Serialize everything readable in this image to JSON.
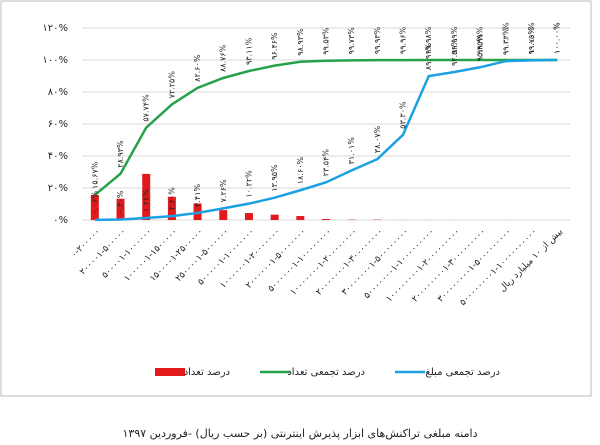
{
  "chart_data": {
    "type": "combo",
    "caption": "دامنه مبلغی تراکنش‌های ابزار پذیرش اینترنتی (بر حسب ریال) -فروردین ۱۳۹۷",
    "categories": [
      "۰-۲۰۰۰۰۰",
      "۲۰۰۰۰۱-۵۰۰۰۰۰",
      "۵۰۰۰۰۱-۱۰۰۰۰۰۰",
      "۱۰۰۰۰۰۱-۱۵۰۰۰۰۰",
      "۱۵۰۰۰۰۱-۲۵۰۰۰۰۰",
      "۲۵۰۰۰۰۱-۵۰۰۰۰۰۰",
      "۵۰۰۰۰۰۱-۱۰۰۰۰۰۰۰",
      "۱۰۰۰۰۰۰۱-۲۰۰۰۰۰۰۰",
      "۲۰۰۰۰۰۰۱-۵۰۰۰۰۰۰۰",
      "۵۰۰۰۰۰۰۱-۱۰۰۰۰۰۰۰۰",
      "۱۰۰۰۰۰۰۰۱-۲۰۰۰۰۰۰۰۰",
      "۲۰۰۰۰۰۰۰۱-۳۰۰۰۰۰۰۰۰",
      "۳۰۰۰۰۰۰۰۱-۵۰۰۰۰۰۰۰۰",
      "۵۰۰۰۰۰۰۰۱-۱۰۰۰۰۰۰۰۰۰",
      "۱۰۰۰۰۰۰۰۰۱-۲۰۰۰۰۰۰۰۰۰",
      "۲۰۰۰۰۰۰۰۰۱-۳۰۰۰۰۰۰۰۰۰",
      "۳۰۰۰۰۰۰۰۰۱-۵۰۰۰۰۰۰۰۰۰",
      "۵۰۰۰۰۰۰۰۰۱-۱۰۰۰۰۰۰۰۰۰۰",
      "بیش از ۱۰ میلیارد ریال"
    ],
    "series": [
      {
        "name": "درصد تعداد",
        "type": "bar",
        "color": "#e31a1c",
        "values": [
          15.67,
          13.26,
          28.81,
          14.51,
          10.35,
          6.16,
          4.35,
          3.35,
          2.47,
          0.6,
          0.2,
          0.2,
          0.03,
          0.02,
          0.01,
          0,
          0.01,
          0,
          0
        ]
      },
      {
        "name": "درصد تجمعی تعداد",
        "type": "line",
        "color": "#27a24a",
        "values": [
          15.67,
          28.93,
          57.74,
          72.25,
          82.6,
          88.76,
          93.11,
          96.46,
          98.93,
          99.53,
          99.73,
          99.93,
          99.96,
          99.98,
          99.99,
          99.99,
          100,
          100,
          100
        ],
        "value_labels": [
          "۱۵.۶۷%",
          "۲۸.۹۳%",
          "۵۷.۷۴%",
          "۷۲.۲۵%",
          "۸۲.۶۰%",
          "۸۸.۷۶%",
          "۹۳.۱۱%",
          "۹۶.۴۶%",
          "۹۸.۹۳%",
          "۹۹.۵۳%",
          "۹۹.۷۳%",
          "۹۹.۹۳%",
          "۹۹.۹۶%",
          "۹۹.۹۸%",
          "۹۹.۹۹%",
          "۹۹.۹۹%",
          "۱۰۰.۰۰%",
          "۱۰۰.۰۰%",
          "۱۰۰.۰۰%"
        ]
      },
      {
        "name": "درصد تجمعی مبلغ",
        "type": "line",
        "color": "#1ba1e2",
        "values": [
          0.06,
          0.3,
          1.26,
          2.4,
          4.41,
          7.26,
          10.22,
          13.95,
          18.6,
          23.54,
          31.01,
          38.07,
          53.3,
          89.91,
          92.51,
          95.45,
          99.33,
          99.75,
          100
        ],
        "value_labels": [
          "۰.۰۶%",
          "۰.۳۰%",
          "۱.۲۶%",
          "۲.۴۰%",
          "۴.۴۱%",
          "۷.۲۶%",
          "۱۰.۲۲%",
          "۱۳.۹۵%",
          "۱۸.۶۰%",
          "۲۳.۵۴%",
          "۳۱.۰۱%",
          "۳۸.۰۷%",
          "۵۳.۳۰%",
          "۸۹.۹۱%",
          "۹۲.۵۱%",
          "۹۵.۴۵%",
          "۹۹.۳۳%",
          "۹۹.۷۵%",
          "۱۰۰.۰۰%"
        ]
      }
    ],
    "ylim": [
      0,
      120
    ],
    "yticks": [
      {
        "value": 0,
        "label": "۰%"
      },
      {
        "value": 20,
        "label": "۲۰%"
      },
      {
        "value": 40,
        "label": "۴۰%"
      },
      {
        "value": 60,
        "label": "۶۰%"
      },
      {
        "value": 80,
        "label": "۸۰%"
      },
      {
        "value": 100,
        "label": "۱۰۰%"
      },
      {
        "value": 120,
        "label": "۱۲۰%"
      }
    ],
    "grid": true,
    "legend": "bottom"
  }
}
